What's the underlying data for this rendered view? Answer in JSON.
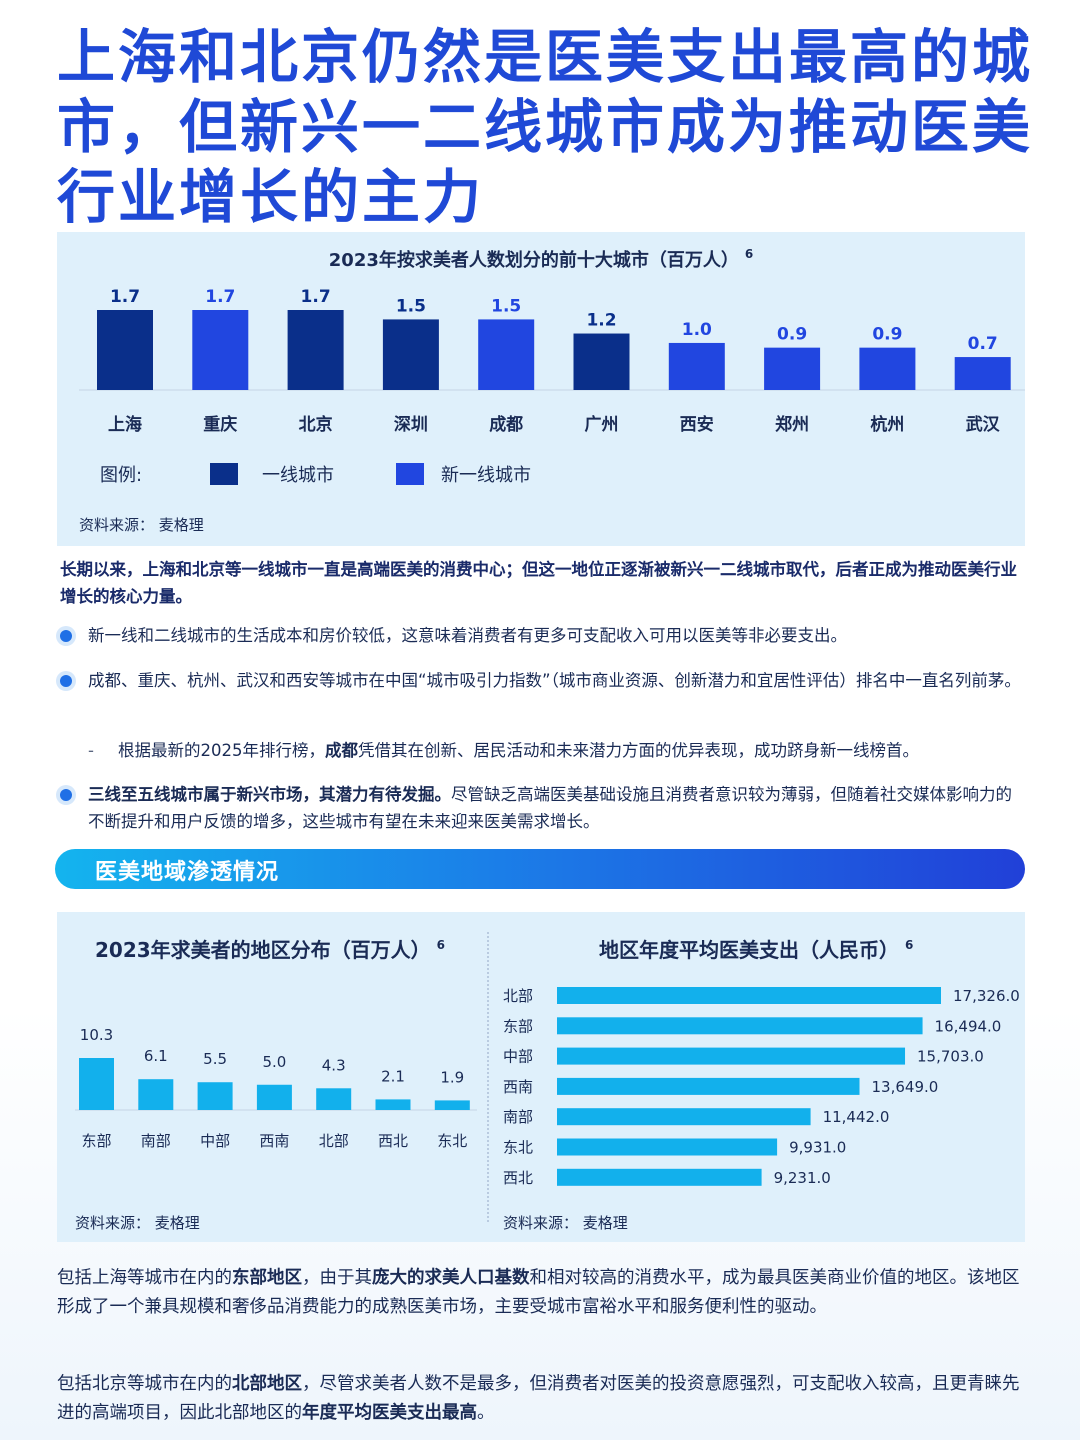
{
  "title": "上海和北京仍然是医美支出最高的城市，但新兴一二线城市成为推动医美行业增长的主力",
  "colors": {
    "tier1": "#0a2f8a",
    "new_tier1": "#2146e0",
    "region_bar": "#12b0ec",
    "title": "#1f49d6"
  },
  "city_chart": {
    "title": "2023年按求美者人数划分的前十大城市（百万人）",
    "footnote": "6",
    "legend_prefix": "图例:",
    "legend": [
      {
        "label": "一线城市",
        "color": "#0a2f8a"
      },
      {
        "label": "新一线城市",
        "color": "#2146e0"
      }
    ],
    "source": "资料来源：  麦格理"
  },
  "chart_data": [
    {
      "type": "bar",
      "title": "2023年按求美者人数划分的前十大城市（百万人）",
      "categories": [
        "上海",
        "重庆",
        "北京",
        "深圳",
        "成都",
        "广州",
        "西安",
        "郑州",
        "杭州",
        "武汉"
      ],
      "values": [
        1.7,
        1.7,
        1.7,
        1.5,
        1.5,
        1.2,
        1.0,
        0.9,
        0.9,
        0.7
      ],
      "labels": [
        "1.7",
        "1.7",
        "1.7",
        "1.5",
        "1.5",
        "1.2",
        "1.0",
        "0.9",
        "0.9",
        "0.7"
      ],
      "tier": [
        "一线城市",
        "新一线城市",
        "一线城市",
        "一线城市",
        "新一线城市",
        "一线城市",
        "新一线城市",
        "新一线城市",
        "新一线城市",
        "新一线城市"
      ],
      "ylim": [
        0,
        1.7
      ]
    },
    {
      "type": "bar",
      "title": "2023年求美者的地区分布（百万人）",
      "categories": [
        "东部",
        "南部",
        "中部",
        "西南",
        "北部",
        "西北",
        "东北"
      ],
      "values": [
        10.3,
        6.1,
        5.5,
        5.0,
        4.3,
        2.1,
        1.9
      ],
      "labels": [
        "10.3",
        "6.1",
        "5.5",
        "5.0",
        "4.3",
        "2.1",
        "1.9"
      ],
      "ylim": [
        0,
        10.3
      ]
    },
    {
      "type": "bar",
      "orientation": "horizontal",
      "title": "地区年度平均医美支出（人民币）",
      "categories": [
        "北部",
        "东部",
        "中部",
        "西南",
        "南部",
        "东北",
        "西北"
      ],
      "values": [
        17326.0,
        16494.0,
        15703.0,
        13649.0,
        11442.0,
        9931.0,
        9231.0
      ],
      "labels": [
        "17,326.0",
        "16,494.0",
        "15,703.0",
        "13,649.0",
        "11,442.0",
        "9,931.0",
        "9,231.0"
      ],
      "xlim": [
        0,
        17326.0
      ]
    }
  ],
  "lead": "长期以来，上海和北京等一线城市一直是高端医美的消费中心；但这一地位正逐渐被新兴一二线城市取代，后者正成为推动医美行业增长的核心力量。",
  "bullets": {
    "b1": "新一线和二线城市的生活成本和房价较低，这意味着消费者有更多可支配收入可用以医美等非必要支出。",
    "b2": "成都、重庆、杭州、武汉和西安等城市在中国“城市吸引力指数”（城市商业资源、创新潜力和宜居性评估）排名中一直名列前茅。",
    "sub_dash": "-",
    "sub_pre": "根据最新的2025年排行榜，",
    "sub_bold": "成都",
    "sub_post": "凭借其在创新、居民活动和未来潜力方面的优异表现，成功跻身新一线榜首。",
    "b3_bold": "三线至五线城市属于新兴市场，其潜力有待发掘。",
    "b3_post": "尽管缺乏高端医美基础设施且消费者意识较为薄弱，但随着社交媒体影响力的不断提升和用户反馈的增多，这些城市有望在未来迎来医美需求增长。"
  },
  "section_header": "医美地域渗透情况",
  "region_chart": {
    "title": "2023年求美者的地区分布（百万人）",
    "footnote": "6",
    "source": "资料来源：  麦格理"
  },
  "spend_chart": {
    "title": "地区年度平均医美支出（人民币）",
    "footnote": "6",
    "source": "资料来源：  麦格理"
  },
  "para1": {
    "p1": "包括上海等城市在内的",
    "b1": "东部地区",
    "p2": "，由于其",
    "b2": "庞大的求美人口基数",
    "p3": "和相对较高的消费水平，成为最具医美商业价值的地区。该地区形成了一个兼具规模和奢侈品消费能力的成熟医美市场，主要受城市富裕水平和服务便利性的驱动。"
  },
  "para2": {
    "p1": "包括北京等城市在内的",
    "b1": "北部地区",
    "p2": "，尽管求美者人数不是最多，但消费者对医美的投资意愿强烈，可支配收入较高，且更青睐先进的高端项目，因此北部地区的",
    "b2": "年度平均医美支出最高",
    "p3": "。"
  }
}
